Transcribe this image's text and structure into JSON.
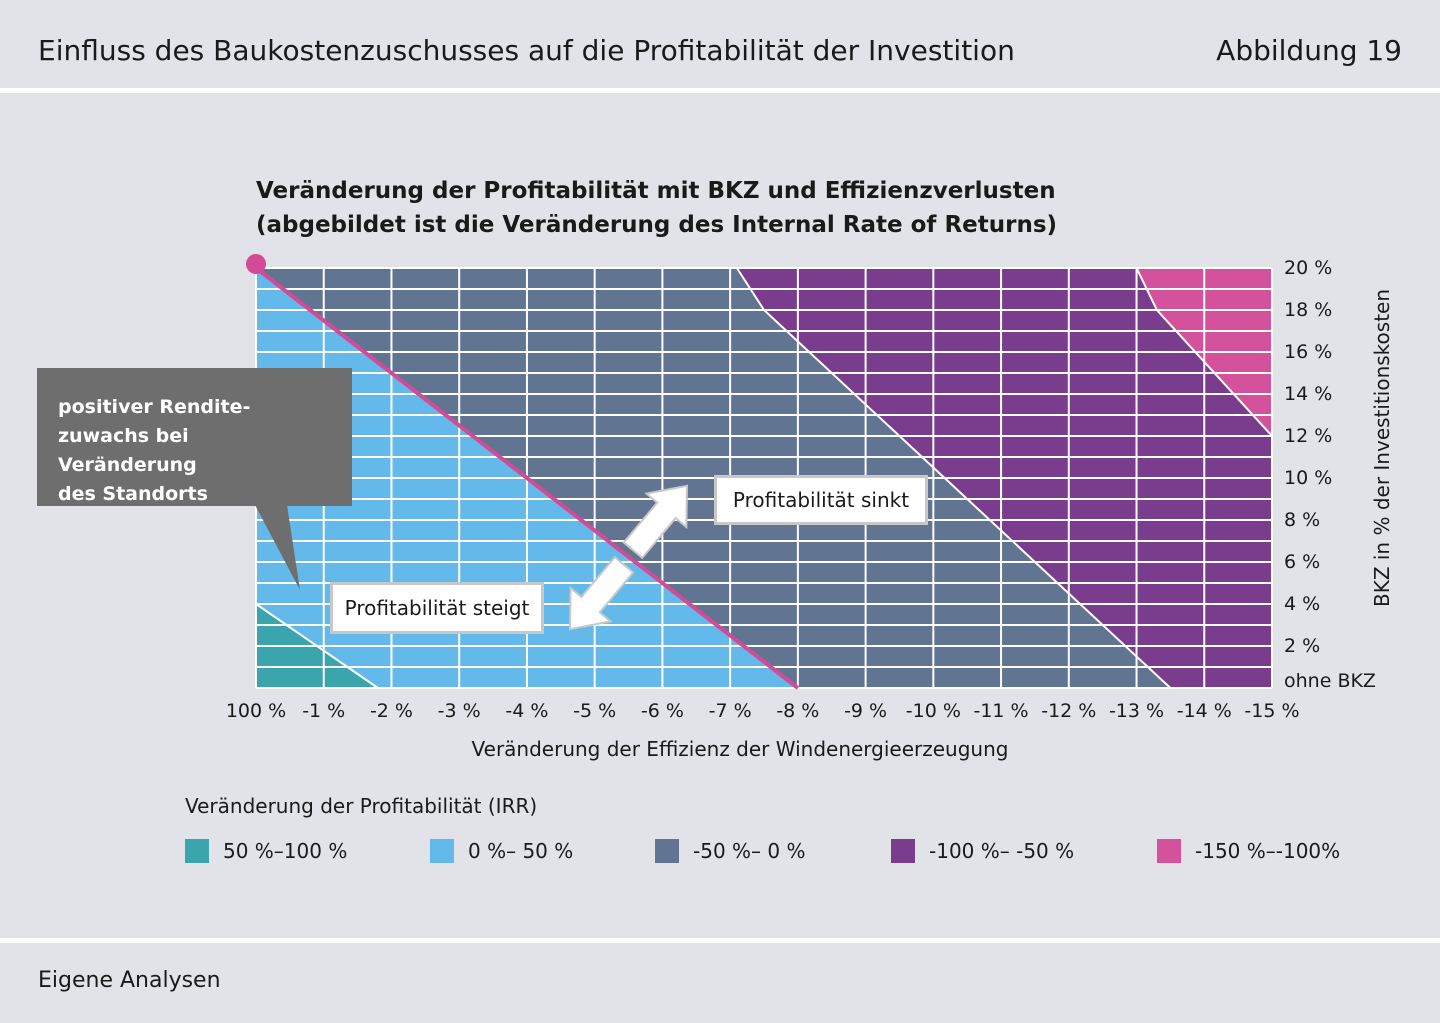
{
  "header": {
    "title": "Einfluss des Baukostenzuschusses auf die Profitabilität der Investition",
    "figure_label": "Abbildung 19"
  },
  "footer": {
    "source": "Eigene Analysen"
  },
  "colors": {
    "c50_100": "#3aa5ad",
    "c0_50": "#62b9ea",
    "cm50_0": "#617491",
    "cm100_m50": "#7a3c8c",
    "cm150_m100": "#d4519b",
    "line": "#d34b97",
    "grid": "#ffffff",
    "callout": "#6e6e6e"
  },
  "chart_data": {
    "type": "heatmap",
    "title_line1": "Veränderung der Profitabilität mit BKZ und Effizienzverlusten",
    "title_line2": "(abgebildet ist die Veränderung des Internal Rate of Returns)",
    "xlabel": "Veränderung der Effizienz der Windenergieerzeugung",
    "ylabel": "BKZ in % der Investitionskosten",
    "x_ticks": [
      "100 %",
      "-1 %",
      "-2 %",
      "-3 %",
      "-4 %",
      "-5 %",
      "-6 %",
      "-7 %",
      "-8 %",
      "-9 %",
      "-10 %",
      "-11 %",
      "-12 %",
      "-13 %",
      "-14 %",
      "-15 %"
    ],
    "y_ticks": [
      "ohne BKZ",
      "2 %",
      "4 %",
      "6 %",
      "8 %",
      "10 %",
      "12 %",
      "14 %",
      "16 %",
      "18 %",
      "20 %"
    ],
    "xlim": [
      0,
      -15
    ],
    "ylim": [
      0,
      20
    ],
    "regions": [
      {
        "name": "50 %–100 %",
        "color": "#3aa5ad",
        "polygon": [
          [
            0,
            0
          ],
          [
            0,
            4
          ],
          [
            -1.8,
            0
          ]
        ]
      },
      {
        "name": "0 %–50 %",
        "color": "#62b9ea",
        "polygon": [
          [
            0,
            4
          ],
          [
            0,
            20
          ],
          [
            -8,
            0
          ],
          [
            -1.8,
            0
          ]
        ]
      },
      {
        "name": "-50 %–0 %",
        "color": "#617491",
        "polygon": [
          [
            0,
            20
          ],
          [
            -7.1,
            20
          ],
          [
            -7.5,
            18
          ],
          [
            -13.5,
            0
          ],
          [
            -8,
            0
          ]
        ]
      },
      {
        "name": "-100 %–-50 %",
        "color": "#7a3c8c",
        "polygon": [
          [
            -7.1,
            20
          ],
          [
            -13,
            20
          ],
          [
            -13.3,
            18
          ],
          [
            -15,
            12
          ],
          [
            -15,
            0
          ],
          [
            -13.5,
            0
          ],
          [
            -7.5,
            18
          ]
        ]
      },
      {
        "name": "-150 %–-100%",
        "color": "#d4519b",
        "polygon": [
          [
            -13,
            20
          ],
          [
            -15,
            20
          ],
          [
            -15,
            12
          ],
          [
            -13.3,
            18
          ]
        ]
      }
    ],
    "line": {
      "from": [
        0,
        20
      ],
      "to": [
        -8,
        0
      ]
    },
    "legend_title": "Veränderung der Profitabilität (IRR)",
    "legend": [
      {
        "label": "50 %–100 %",
        "color": "#3aa5ad"
      },
      {
        "label": "0 %– 50 %",
        "color": "#62b9ea"
      },
      {
        "label": "-50 %– 0 %",
        "color": "#617491"
      },
      {
        "label": "-100 %– -50 %",
        "color": "#7a3c8c"
      },
      {
        "label": "-150 %–-100%",
        "color": "#d4519b"
      }
    ],
    "annotations": {
      "callout": [
        "positiver Rendite-",
        "zuwachs bei Veränderung",
        "des Standorts"
      ],
      "sinkt": "Profitabilität sinkt",
      "steigt": "Profitabilität steigt"
    }
  }
}
